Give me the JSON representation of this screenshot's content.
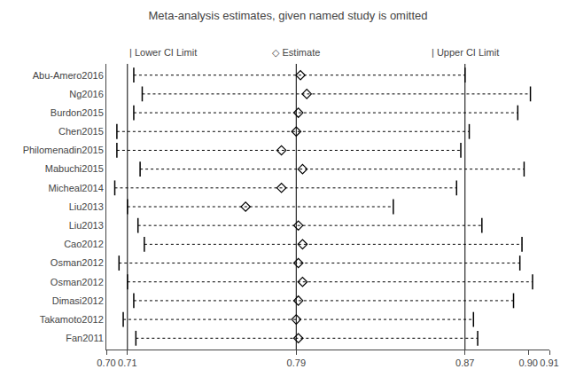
{
  "chart_data": {
    "type": "forest",
    "title": "Meta-analysis estimates, given named study is omitted",
    "categories": [
      "Abu-Amero2016",
      "Ng2016",
      "Burdon2015",
      "Chen2015",
      "Philomenadin2015",
      "Mabuchi2015",
      "Micheal2014",
      "Liu2013",
      "Liu2013",
      "Cao2012",
      "Osman2012",
      "Osman2012",
      "Dimasi2012",
      "Takamoto2012",
      "Fan2011"
    ],
    "values": [
      0.792,
      0.795,
      0.791,
      0.79,
      0.783,
      0.793,
      0.783,
      0.766,
      0.791,
      0.793,
      0.791,
      0.793,
      0.791,
      0.79,
      0.791
    ],
    "lower": [
      0.713,
      0.717,
      0.713,
      0.705,
      0.705,
      0.716,
      0.704,
      0.71,
      0.715,
      0.718,
      0.706,
      0.71,
      0.713,
      0.708,
      0.714
    ],
    "upper": [
      0.87,
      0.901,
      0.895,
      0.872,
      0.868,
      0.898,
      0.866,
      0.836,
      0.878,
      0.897,
      0.896,
      0.902,
      0.893,
      0.874,
      0.876
    ],
    "reference_lines": [
      0.71,
      0.79,
      0.87
    ],
    "annotations": [
      "| Lower CI Limit",
      "◇ Estimate",
      "| Upper CI Limit"
    ],
    "xlim": [
      0.7,
      0.91
    ],
    "xticks": [
      {
        "value": 0.7,
        "label": "0.70"
      },
      0.71,
      0.79,
      0.87,
      {
        "value": 0.9,
        "label": "0.90"
      },
      0.91
    ],
    "grid": false,
    "color": "black"
  }
}
